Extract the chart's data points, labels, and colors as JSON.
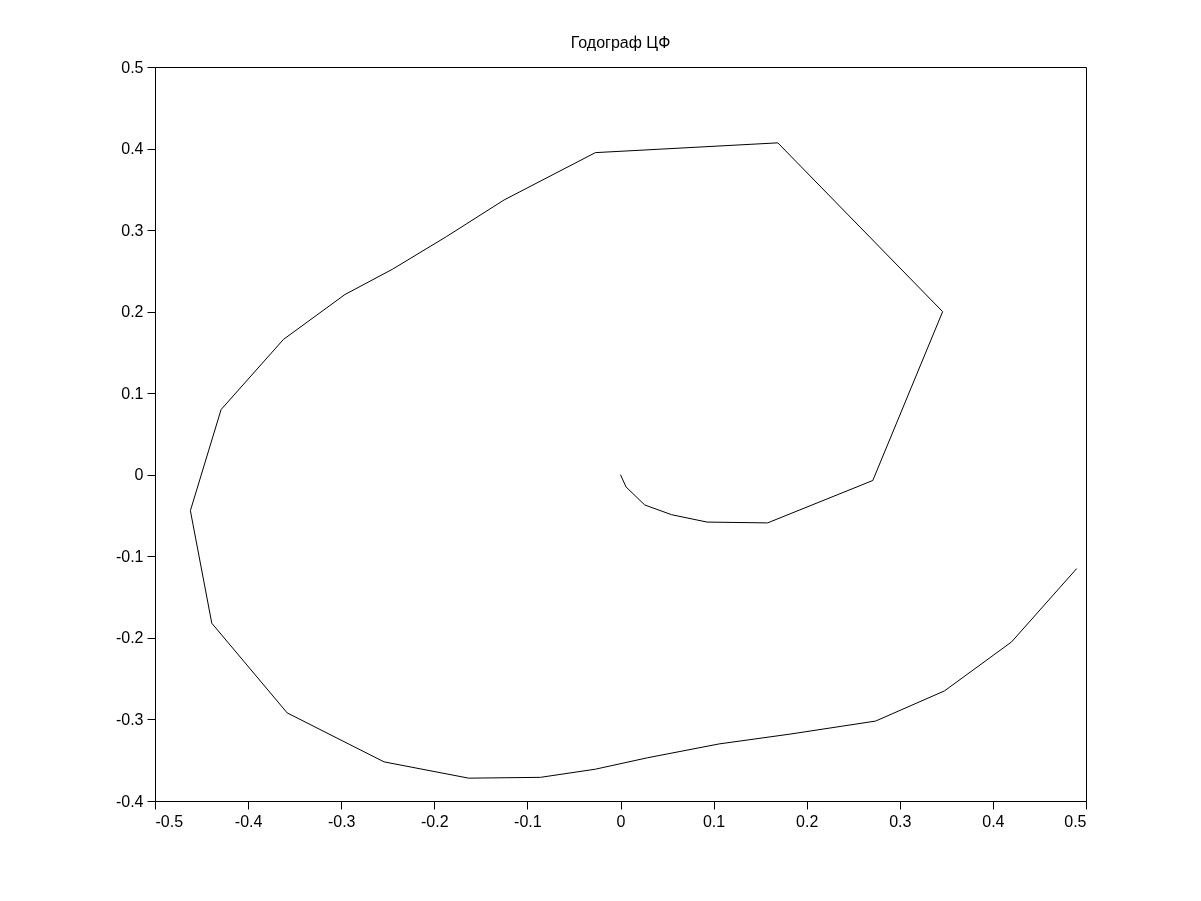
{
  "chart_data": {
    "type": "line",
    "title": "Годограф ЦФ",
    "x": [
      0,
      0.006,
      0.026,
      0.055,
      0.093,
      0.158,
      0.271,
      0.346,
      0.169,
      -0.027,
      -0.125,
      -0.187,
      -0.245,
      -0.296,
      -0.362,
      -0.429,
      -0.462,
      -0.439,
      -0.358,
      -0.254,
      -0.163,
      -0.086,
      -0.027,
      0.029,
      0.106,
      0.182,
      0.274,
      0.348,
      0.42,
      0.49
    ],
    "series": [
      {
        "color": "#000000",
        "values": [
          0,
          -0.015,
          -0.037,
          -0.049,
          -0.058,
          -0.059,
          -0.007,
          0.2,
          0.407,
          0.395,
          0.337,
          0.292,
          0.252,
          0.221,
          0.166,
          0.08,
          -0.044,
          -0.182,
          -0.292,
          -0.352,
          -0.372,
          -0.371,
          -0.361,
          -0.347,
          -0.33,
          -0.318,
          -0.302,
          -0.265,
          -0.205,
          -0.115
        ]
      }
    ],
    "xlim": [
      -0.5,
      0.5
    ],
    "ylim": [
      -0.4,
      0.5
    ],
    "xticks": [
      -0.5,
      -0.4,
      -0.3,
      -0.2,
      -0.1,
      0,
      0.1,
      0.2,
      0.3,
      0.4,
      0.5
    ],
    "yticks": [
      -0.4,
      -0.3,
      -0.2,
      -0.1,
      0,
      0.1,
      0.2,
      0.3,
      0.4,
      0.5
    ]
  }
}
